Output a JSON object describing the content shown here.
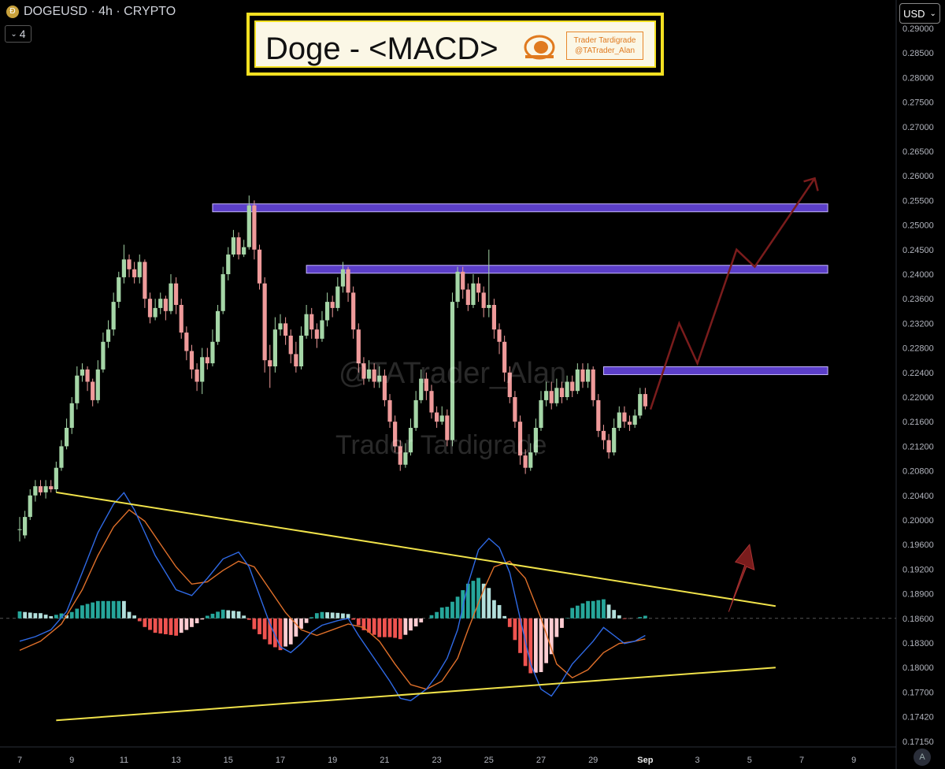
{
  "header": {
    "symbol_line": "DOGEUSD · 4h · CRYPTO",
    "interval_count": "4",
    "currency": "USD"
  },
  "banner": {
    "title": "Doge - <MACD>",
    "brand_line1": "Trader Tardigrade",
    "brand_line2": "@TATrader_Alan"
  },
  "watermarks": {
    "handle": "@TATrader_Alan",
    "name": "Trader Tardigrade"
  },
  "auto_button": "A",
  "colors": {
    "up": "#a5d6a7",
    "down": "#ef9a9a",
    "resistance": "#5b3ec8",
    "wedge": "#f0e24a",
    "projection": "#7a1c1c",
    "macd": "#2f6ae6",
    "signal": "#e0702a",
    "hist_up_strong": "#26a69a",
    "hist_up_weak": "#b2dfdb",
    "hist_down_strong": "#ef5350",
    "hist_down_weak": "#ffcdd2"
  },
  "chart_data": {
    "type": "candlestick",
    "symbol": "DOGEUSD",
    "timeframe": "4h",
    "y_ticks": [
      "0.29000",
      "0.28500",
      "0.28000",
      "0.27500",
      "0.27000",
      "0.26500",
      "0.26000",
      "0.25500",
      "0.25000",
      "0.24500",
      "0.24000",
      "0.23600",
      "0.23200",
      "0.22800",
      "0.22400",
      "0.22000",
      "0.21600",
      "0.21200",
      "0.20800",
      "0.20400",
      "0.20000",
      "0.19600",
      "0.19200",
      "0.18900",
      "0.18600",
      "0.18300",
      "0.18000",
      "0.17700",
      "0.17420",
      "0.17150"
    ],
    "x_ticks": [
      "7",
      "9",
      "11",
      "13",
      "15",
      "17",
      "19",
      "21",
      "23",
      "25",
      "27",
      "29",
      "Sep",
      "3",
      "5",
      "7",
      "9"
    ],
    "x_day_start": 7,
    "x_day_end": 40,
    "current_price": 0.186,
    "candles": [
      [
        7.0,
        0.1985,
        0.1985,
        0.2005,
        0.1965
      ],
      [
        7.2,
        0.1975,
        0.2005,
        0.2015,
        0.197
      ],
      [
        7.4,
        0.2005,
        0.204,
        0.205,
        0.2
      ],
      [
        7.6,
        0.204,
        0.2055,
        0.2065,
        0.203
      ],
      [
        7.8,
        0.2055,
        0.2045,
        0.2065,
        0.204
      ],
      [
        8.0,
        0.2045,
        0.2055,
        0.2065,
        0.2035
      ],
      [
        8.2,
        0.2055,
        0.205,
        0.2065,
        0.2045
      ],
      [
        8.4,
        0.205,
        0.2085,
        0.2095,
        0.2045
      ],
      [
        8.6,
        0.2085,
        0.212,
        0.213,
        0.208
      ],
      [
        8.8,
        0.212,
        0.215,
        0.2165,
        0.2115
      ],
      [
        9.0,
        0.215,
        0.219,
        0.22,
        0.214
      ],
      [
        9.2,
        0.219,
        0.2235,
        0.225,
        0.218
      ],
      [
        9.4,
        0.2235,
        0.2245,
        0.2255,
        0.2225
      ],
      [
        9.6,
        0.2245,
        0.2225,
        0.225,
        0.221
      ],
      [
        9.8,
        0.2225,
        0.2195,
        0.223,
        0.2185
      ],
      [
        10.0,
        0.2195,
        0.2245,
        0.226,
        0.219
      ],
      [
        10.2,
        0.2245,
        0.229,
        0.2305,
        0.224
      ],
      [
        10.4,
        0.229,
        0.231,
        0.2325,
        0.228
      ],
      [
        10.6,
        0.231,
        0.2355,
        0.237,
        0.23
      ],
      [
        10.8,
        0.2355,
        0.2395,
        0.2405,
        0.2345
      ],
      [
        11.0,
        0.2395,
        0.243,
        0.246,
        0.2385
      ],
      [
        11.2,
        0.243,
        0.241,
        0.244,
        0.2395
      ],
      [
        11.4,
        0.241,
        0.2395,
        0.2425,
        0.2385
      ],
      [
        11.6,
        0.2395,
        0.2425,
        0.244,
        0.2385
      ],
      [
        11.8,
        0.2425,
        0.236,
        0.243,
        0.2345
      ],
      [
        12.0,
        0.236,
        0.233,
        0.237,
        0.232
      ],
      [
        12.2,
        0.233,
        0.2345,
        0.236,
        0.2325
      ],
      [
        12.4,
        0.2345,
        0.236,
        0.237,
        0.2335
      ],
      [
        12.6,
        0.236,
        0.234,
        0.2365,
        0.2325
      ],
      [
        12.8,
        0.234,
        0.2385,
        0.24,
        0.2335
      ],
      [
        13.0,
        0.2385,
        0.235,
        0.2395,
        0.2335
      ],
      [
        13.2,
        0.235,
        0.2305,
        0.236,
        0.2295
      ],
      [
        13.4,
        0.2305,
        0.2275,
        0.2315,
        0.226
      ],
      [
        13.6,
        0.2275,
        0.2245,
        0.2285,
        0.223
      ],
      [
        13.8,
        0.2245,
        0.2225,
        0.2255,
        0.221
      ],
      [
        14.0,
        0.2225,
        0.2265,
        0.228,
        0.2205
      ],
      [
        14.2,
        0.2265,
        0.2255,
        0.228,
        0.2245
      ],
      [
        14.4,
        0.2255,
        0.229,
        0.231,
        0.225
      ],
      [
        14.6,
        0.229,
        0.234,
        0.235,
        0.2285
      ],
      [
        14.8,
        0.234,
        0.24,
        0.2415,
        0.2335
      ],
      [
        15.0,
        0.24,
        0.244,
        0.2455,
        0.239
      ],
      [
        15.2,
        0.244,
        0.2475,
        0.249,
        0.2435
      ],
      [
        15.4,
        0.2475,
        0.244,
        0.2485,
        0.243
      ],
      [
        15.6,
        0.244,
        0.2455,
        0.247,
        0.2435
      ],
      [
        15.8,
        0.2455,
        0.254,
        0.256,
        0.245
      ],
      [
        16.0,
        0.254,
        0.245,
        0.255,
        0.243
      ],
      [
        16.2,
        0.245,
        0.2385,
        0.246,
        0.2375
      ],
      [
        16.4,
        0.2385,
        0.226,
        0.2395,
        0.224
      ],
      [
        16.6,
        0.226,
        0.225,
        0.2285,
        0.2215
      ],
      [
        16.8,
        0.225,
        0.231,
        0.233,
        0.224
      ],
      [
        17.0,
        0.231,
        0.232,
        0.2335,
        0.23
      ],
      [
        17.2,
        0.232,
        0.23,
        0.233,
        0.2285
      ],
      [
        17.4,
        0.23,
        0.227,
        0.231,
        0.2255
      ],
      [
        17.6,
        0.227,
        0.225,
        0.229,
        0.224
      ],
      [
        17.8,
        0.225,
        0.23,
        0.2315,
        0.2245
      ],
      [
        18.0,
        0.23,
        0.2335,
        0.235,
        0.2295
      ],
      [
        18.2,
        0.2335,
        0.231,
        0.2345,
        0.2295
      ],
      [
        18.4,
        0.231,
        0.2295,
        0.232,
        0.228
      ],
      [
        18.6,
        0.2295,
        0.2325,
        0.234,
        0.229
      ],
      [
        18.8,
        0.2325,
        0.2355,
        0.237,
        0.2315
      ],
      [
        19.0,
        0.2355,
        0.2345,
        0.2365,
        0.233
      ],
      [
        19.2,
        0.2345,
        0.238,
        0.2395,
        0.234
      ],
      [
        19.4,
        0.238,
        0.241,
        0.2425,
        0.237
      ],
      [
        19.6,
        0.241,
        0.237,
        0.2415,
        0.2355
      ],
      [
        19.8,
        0.237,
        0.231,
        0.238,
        0.2295
      ],
      [
        20.0,
        0.231,
        0.2255,
        0.232,
        0.224
      ],
      [
        20.2,
        0.2255,
        0.223,
        0.2265,
        0.222
      ],
      [
        20.4,
        0.223,
        0.2245,
        0.226,
        0.2225
      ],
      [
        20.6,
        0.2245,
        0.2225,
        0.2255,
        0.2215
      ],
      [
        20.8,
        0.2225,
        0.2235,
        0.225,
        0.2215
      ],
      [
        21.0,
        0.2235,
        0.2195,
        0.2245,
        0.2185
      ],
      [
        21.2,
        0.2195,
        0.216,
        0.2205,
        0.215
      ],
      [
        21.4,
        0.216,
        0.212,
        0.217,
        0.211
      ],
      [
        21.6,
        0.212,
        0.209,
        0.213,
        0.208
      ],
      [
        21.8,
        0.209,
        0.211,
        0.2125,
        0.2085
      ],
      [
        22.0,
        0.211,
        0.215,
        0.2165,
        0.2105
      ],
      [
        22.2,
        0.215,
        0.2195,
        0.221,
        0.2145
      ],
      [
        22.4,
        0.2195,
        0.223,
        0.2245,
        0.219
      ],
      [
        22.6,
        0.223,
        0.221,
        0.224,
        0.2195
      ],
      [
        22.8,
        0.221,
        0.2175,
        0.222,
        0.2165
      ],
      [
        23.0,
        0.2175,
        0.216,
        0.2185,
        0.215
      ],
      [
        23.2,
        0.216,
        0.217,
        0.2185,
        0.2155
      ],
      [
        23.4,
        0.217,
        0.213,
        0.218,
        0.212
      ],
      [
        23.6,
        0.213,
        0.2355,
        0.237,
        0.212
      ],
      [
        23.8,
        0.2355,
        0.2405,
        0.2415,
        0.2345
      ],
      [
        24.0,
        0.2405,
        0.2375,
        0.2415,
        0.236
      ],
      [
        24.2,
        0.2375,
        0.235,
        0.2385,
        0.234
      ],
      [
        24.4,
        0.235,
        0.2385,
        0.24,
        0.2345
      ],
      [
        24.6,
        0.2385,
        0.237,
        0.2395,
        0.2355
      ],
      [
        24.8,
        0.237,
        0.2345,
        0.238,
        0.233
      ],
      [
        25.0,
        0.2345,
        0.235,
        0.245,
        0.233
      ],
      [
        25.2,
        0.235,
        0.231,
        0.236,
        0.2295
      ],
      [
        25.4,
        0.231,
        0.229,
        0.232,
        0.227
      ],
      [
        25.6,
        0.229,
        0.224,
        0.23,
        0.2225
      ],
      [
        25.8,
        0.224,
        0.22,
        0.225,
        0.219
      ],
      [
        26.0,
        0.22,
        0.216,
        0.221,
        0.215
      ],
      [
        26.2,
        0.216,
        0.2105,
        0.217,
        0.209
      ],
      [
        26.4,
        0.2105,
        0.2085,
        0.2115,
        0.2075
      ],
      [
        26.6,
        0.2085,
        0.211,
        0.2125,
        0.208
      ],
      [
        26.8,
        0.211,
        0.215,
        0.2165,
        0.2105
      ],
      [
        27.0,
        0.215,
        0.2195,
        0.221,
        0.2145
      ],
      [
        27.2,
        0.2195,
        0.221,
        0.2225,
        0.2185
      ],
      [
        27.4,
        0.221,
        0.219,
        0.2225,
        0.218
      ],
      [
        27.6,
        0.219,
        0.2215,
        0.223,
        0.2185
      ],
      [
        27.8,
        0.2215,
        0.22,
        0.2225,
        0.219
      ],
      [
        28.0,
        0.22,
        0.2225,
        0.2235,
        0.2195
      ],
      [
        28.2,
        0.2225,
        0.221,
        0.2235,
        0.22
      ],
      [
        28.4,
        0.221,
        0.2245,
        0.2255,
        0.2205
      ],
      [
        28.6,
        0.2245,
        0.2225,
        0.2255,
        0.2215
      ],
      [
        28.8,
        0.2225,
        0.2245,
        0.2255,
        0.2215
      ],
      [
        29.0,
        0.2245,
        0.2195,
        0.225,
        0.2185
      ],
      [
        29.2,
        0.2195,
        0.2145,
        0.2205,
        0.2135
      ],
      [
        29.4,
        0.2145,
        0.213,
        0.2155,
        0.2115
      ],
      [
        29.6,
        0.213,
        0.211,
        0.214,
        0.21
      ],
      [
        29.8,
        0.211,
        0.215,
        0.2165,
        0.2105
      ],
      [
        30.0,
        0.215,
        0.2175,
        0.2185,
        0.2145
      ],
      [
        30.2,
        0.2175,
        0.216,
        0.2185,
        0.215
      ],
      [
        30.4,
        0.216,
        0.2155,
        0.217,
        0.2145
      ],
      [
        30.6,
        0.2155,
        0.217,
        0.218,
        0.215
      ],
      [
        30.8,
        0.217,
        0.2205,
        0.2215,
        0.2165
      ],
      [
        31.0,
        0.2205,
        0.2185,
        0.2215,
        0.218
      ]
    ],
    "resistance_zones": [
      {
        "x_start": 14.4,
        "x_end": 38.0,
        "price": 0.2535
      },
      {
        "x_start": 18.0,
        "x_end": 38.0,
        "price": 0.241
      },
      {
        "x_start": 29.4,
        "x_end": 38.0,
        "price": 0.2243
      }
    ],
    "projection_path": [
      [
        31.2,
        0.218
      ],
      [
        32.3,
        0.232
      ],
      [
        33.0,
        0.2255
      ],
      [
        34.5,
        0.245
      ],
      [
        35.2,
        0.2415
      ],
      [
        37.5,
        0.2595
      ]
    ],
    "macd_wedge": {
      "upper": [
        [
          8.4,
          0.2045
        ],
        [
          36.0,
          0.1875
        ]
      ],
      "lower": [
        [
          8.4,
          0.1738
        ],
        [
          36.0,
          0.18
        ]
      ]
    },
    "macd_arrow": [
      [
        34.2,
        0.1868
      ],
      [
        35.0,
        0.196
      ]
    ],
    "macd": {
      "zero_price": 0.186,
      "unit_price": 1.55e-05,
      "line": [
        [
          7.0,
          -20
        ],
        [
          7.6,
          -16
        ],
        [
          8.2,
          -10
        ],
        [
          8.8,
          6
        ],
        [
          9.4,
          40
        ],
        [
          10.0,
          75
        ],
        [
          10.6,
          100
        ],
        [
          11.0,
          110
        ],
        [
          11.4,
          95
        ],
        [
          11.8,
          75
        ],
        [
          12.2,
          55
        ],
        [
          12.6,
          40
        ],
        [
          13.0,
          25
        ],
        [
          13.6,
          20
        ],
        [
          14.2,
          35
        ],
        [
          14.8,
          52
        ],
        [
          15.4,
          58
        ],
        [
          15.8,
          45
        ],
        [
          16.2,
          20
        ],
        [
          16.6,
          -5
        ],
        [
          17.0,
          -25
        ],
        [
          17.4,
          -30
        ],
        [
          17.8,
          -22
        ],
        [
          18.2,
          -12
        ],
        [
          18.6,
          -6
        ],
        [
          19.2,
          -2
        ],
        [
          19.6,
          0
        ],
        [
          20.0,
          -15
        ],
        [
          20.6,
          -35
        ],
        [
          21.2,
          -55
        ],
        [
          21.6,
          -70
        ],
        [
          22.0,
          -72
        ],
        [
          22.6,
          -62
        ],
        [
          23.0,
          -50
        ],
        [
          23.4,
          -35
        ],
        [
          23.8,
          -10
        ],
        [
          24.2,
          30
        ],
        [
          24.6,
          60
        ],
        [
          25.0,
          70
        ],
        [
          25.4,
          62
        ],
        [
          25.8,
          40
        ],
        [
          26.2,
          0
        ],
        [
          26.6,
          -40
        ],
        [
          27.0,
          -62
        ],
        [
          27.4,
          -68
        ],
        [
          27.8,
          -55
        ],
        [
          28.2,
          -40
        ],
        [
          28.6,
          -30
        ],
        [
          29.0,
          -20
        ],
        [
          29.4,
          -8
        ],
        [
          29.8,
          -15
        ],
        [
          30.2,
          -22
        ],
        [
          30.6,
          -20
        ],
        [
          31.0,
          -15
        ]
      ],
      "signal": [
        [
          7.0,
          -28
        ],
        [
          7.8,
          -20
        ],
        [
          8.6,
          -5
        ],
        [
          9.4,
          25
        ],
        [
          10.0,
          55
        ],
        [
          10.6,
          80
        ],
        [
          11.2,
          95
        ],
        [
          11.8,
          85
        ],
        [
          12.4,
          65
        ],
        [
          13.0,
          45
        ],
        [
          13.6,
          30
        ],
        [
          14.2,
          32
        ],
        [
          14.8,
          42
        ],
        [
          15.4,
          50
        ],
        [
          16.0,
          45
        ],
        [
          16.6,
          25
        ],
        [
          17.2,
          5
        ],
        [
          17.8,
          -10
        ],
        [
          18.4,
          -15
        ],
        [
          19.0,
          -10
        ],
        [
          19.6,
          -5
        ],
        [
          20.2,
          -8
        ],
        [
          20.8,
          -20
        ],
        [
          21.4,
          -40
        ],
        [
          22.0,
          -58
        ],
        [
          22.6,
          -62
        ],
        [
          23.2,
          -55
        ],
        [
          23.8,
          -35
        ],
        [
          24.2,
          -10
        ],
        [
          24.8,
          25
        ],
        [
          25.2,
          45
        ],
        [
          25.8,
          50
        ],
        [
          26.4,
          35
        ],
        [
          27.0,
          0
        ],
        [
          27.6,
          -40
        ],
        [
          28.2,
          -52
        ],
        [
          28.8,
          -45
        ],
        [
          29.4,
          -30
        ],
        [
          30.0,
          -22
        ],
        [
          30.6,
          -20
        ],
        [
          31.0,
          -18
        ]
      ]
    }
  }
}
